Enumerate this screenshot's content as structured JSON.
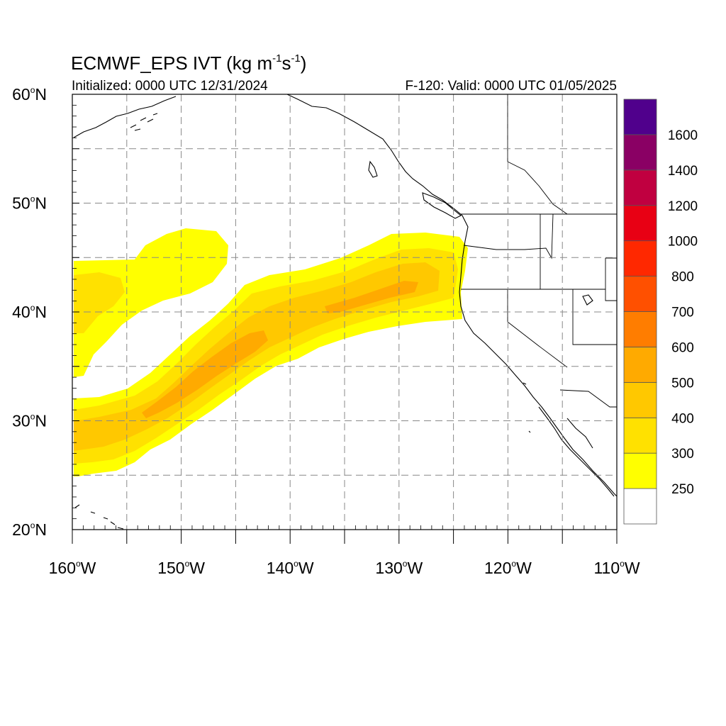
{
  "title": {
    "main": "ECMWF_EPS IVT (kg m",
    "exp1": "-1",
    "mid": "s",
    "exp2": "-1",
    "end": ")"
  },
  "subtitle": {
    "left": "Initialized: 0000 UTC 12/31/2024",
    "right": "F-120: Valid: 0000 UTC 01/05/2025"
  },
  "axes": {
    "x_ticks": [
      {
        "num": "160",
        "hemi": "W"
      },
      {
        "num": "150",
        "hemi": "W"
      },
      {
        "num": "140",
        "hemi": "W"
      },
      {
        "num": "130",
        "hemi": "W"
      },
      {
        "num": "120",
        "hemi": "W"
      },
      {
        "num": "110",
        "hemi": "W"
      }
    ],
    "y_ticks": [
      {
        "num": "60",
        "hemi": "N"
      },
      {
        "num": "50",
        "hemi": "N"
      },
      {
        "num": "40",
        "hemi": "N"
      },
      {
        "num": "30",
        "hemi": "N"
      },
      {
        "num": "20",
        "hemi": "N"
      }
    ],
    "lon_range": [
      -160,
      -110
    ],
    "lat_range": [
      20,
      60
    ],
    "grid": true
  },
  "colorbar": {
    "labels": [
      "250",
      "300",
      "400",
      "500",
      "600",
      "700",
      "800",
      "1000",
      "1200",
      "1400",
      "1600"
    ],
    "colors": [
      "#ffffff",
      "#ffff00",
      "#ffe100",
      "#ffc800",
      "#ffaa00",
      "#ff7d00",
      "#ff5000",
      "#ff2800",
      "#e80014",
      "#c00040",
      "#8a0064",
      "#50008c"
    ]
  }
}
